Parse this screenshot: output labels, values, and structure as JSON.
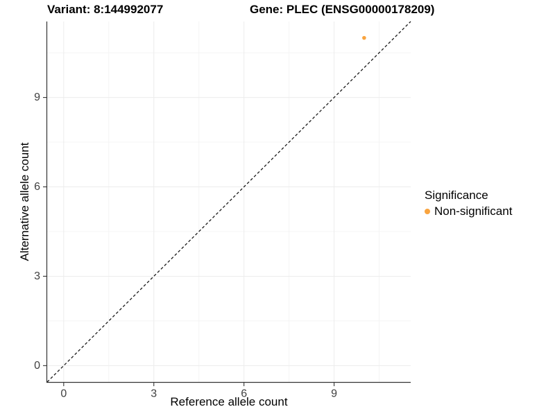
{
  "titles": {
    "variant": "Variant: 8:144992077",
    "gene": "Gene: PLEC (ENSG00000178209)"
  },
  "axes": {
    "x": {
      "label": "Reference allele count",
      "tick_labels": [
        "0",
        "3",
        "6",
        "9"
      ]
    },
    "y": {
      "label": "Alternative allele count",
      "tick_labels": [
        "0",
        "3",
        "6",
        "9"
      ]
    }
  },
  "legend": {
    "title": "Significance",
    "items": [
      {
        "label": "Non-significant",
        "color": "#F9A43F"
      }
    ]
  },
  "colors": {
    "point": "#F9A43F",
    "axis_line": "#333333",
    "tick_label": "#404040",
    "grid_major": "#ececec",
    "grid_minor": "#f4f4f4",
    "identity_line": "#1a1a1a",
    "background": "#ffffff"
  },
  "chart_data": {
    "type": "scatter",
    "title": "Variant: 8:144992077    Gene: PLEC (ENSG00000178209)",
    "xlabel": "Reference allele count",
    "ylabel": "Alternative allele count",
    "xlim": [
      -0.55,
      11.55
    ],
    "ylim": [
      -0.55,
      11.55
    ],
    "x_major_ticks": [
      0,
      3,
      6,
      9
    ],
    "y_major_ticks": [
      0,
      3,
      6,
      9
    ],
    "x_minor_ticks": [
      1.5,
      4.5,
      7.5,
      10.5
    ],
    "y_minor_ticks": [
      1.5,
      4.5,
      7.5,
      10.5
    ],
    "grid": "major+minor",
    "legend_position": "right",
    "legend_title": "Significance",
    "series": [
      {
        "name": "Non-significant",
        "color": "#F9A43F",
        "points": [
          {
            "x": 10,
            "y": 11
          }
        ]
      }
    ],
    "reference_line": {
      "style": "dashed",
      "slope": 1,
      "intercept": 0,
      "note": "y = x identity line"
    }
  }
}
